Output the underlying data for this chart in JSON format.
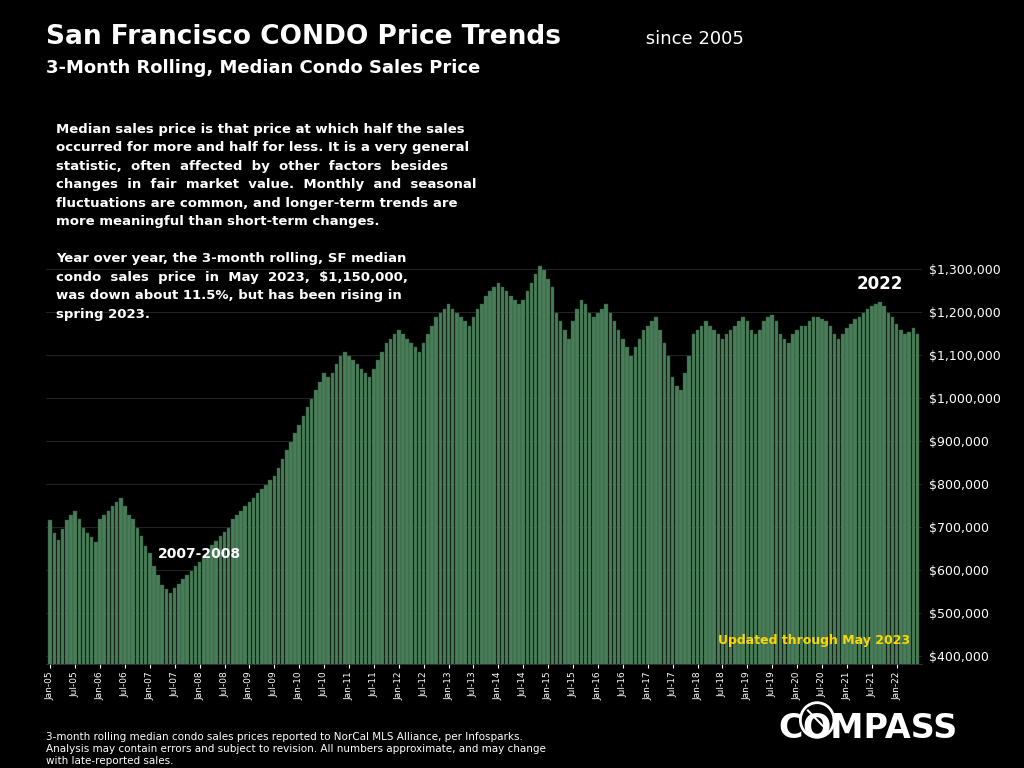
{
  "title_bold": "San Francisco CONDO Price Trends",
  "title_since": " since 2005",
  "subtitle": "3-Month Rolling, Median Condo Sales Price",
  "background_color": "#000000",
  "bar_color": "#4a7c59",
  "bar_edge_color": "#2a5c39",
  "text_color": "#ffffff",
  "yticks": [
    400000,
    500000,
    600000,
    700000,
    800000,
    900000,
    1000000,
    1100000,
    1200000,
    1300000
  ],
  "ymin": 380000,
  "ymax": 1390000,
  "annotation_2022": "2022",
  "annotation_2007": "2007-2008",
  "updated_text": "Updated through May 2023",
  "footnote1": "3-month rolling median condo sales prices reported to NorCal MLS Alliance, per Infosparks.",
  "footnote2": "Analysis may contain errors and subject to revision. All numbers approximate, and may change",
  "footnote3": "with late-reported sales.",
  "desc1": "Median sales price is that price at which half the sales",
  "desc2": "occurred for more and half for less. It is a very general",
  "desc3": "statistic,  often  affected  by  other  factors  besides",
  "desc4": "changes  in  fair  market  value.  Monthly  and  seasonal",
  "desc5": "fluctuations are common, and longer-term trends are",
  "desc6": "more meaningful than short-term changes.",
  "desc7": "",
  "desc8": "Year over year, the 3-month rolling, SF median",
  "desc9": "condo  sales  price  in  May  2023,  $1,150,000,",
  "desc10": "was down about 11.5%, but has been rising in",
  "desc11": "spring 2023.",
  "values": [
    715000,
    685000,
    670000,
    695000,
    715000,
    728000,
    738000,
    718000,
    698000,
    686000,
    676000,
    665000,
    718000,
    728000,
    738000,
    748000,
    758000,
    768000,
    748000,
    728000,
    718000,
    698000,
    678000,
    656000,
    638000,
    608000,
    588000,
    565000,
    555000,
    545000,
    558000,
    568000,
    578000,
    588000,
    598000,
    608000,
    618000,
    628000,
    638000,
    658000,
    668000,
    678000,
    688000,
    698000,
    718000,
    728000,
    738000,
    748000,
    758000,
    768000,
    778000,
    788000,
    798000,
    808000,
    818000,
    838000,
    858000,
    878000,
    898000,
    918000,
    938000,
    958000,
    978000,
    998000,
    1018000,
    1038000,
    1058000,
    1048000,
    1058000,
    1078000,
    1098000,
    1108000,
    1098000,
    1088000,
    1078000,
    1068000,
    1058000,
    1048000,
    1068000,
    1088000,
    1108000,
    1128000,
    1138000,
    1148000,
    1158000,
    1148000,
    1138000,
    1128000,
    1118000,
    1108000,
    1128000,
    1148000,
    1168000,
    1188000,
    1198000,
    1208000,
    1218000,
    1208000,
    1198000,
    1188000,
    1178000,
    1168000,
    1188000,
    1208000,
    1218000,
    1238000,
    1248000,
    1258000,
    1268000,
    1258000,
    1248000,
    1238000,
    1228000,
    1218000,
    1228000,
    1248000,
    1268000,
    1288000,
    1308000,
    1298000,
    1278000,
    1258000,
    1198000,
    1178000,
    1158000,
    1138000,
    1178000,
    1208000,
    1228000,
    1218000,
    1198000,
    1188000,
    1198000,
    1208000,
    1218000,
    1198000,
    1178000,
    1158000,
    1138000,
    1118000,
    1098000,
    1118000,
    1138000,
    1158000,
    1168000,
    1178000,
    1188000,
    1158000,
    1128000,
    1098000,
    1048000,
    1028000,
    1018000,
    1058000,
    1098000,
    1148000,
    1158000,
    1168000,
    1178000,
    1168000,
    1158000,
    1148000,
    1138000,
    1148000,
    1158000,
    1168000,
    1178000,
    1188000,
    1178000,
    1158000,
    1148000,
    1158000,
    1178000,
    1188000,
    1193000,
    1178000,
    1148000,
    1138000,
    1128000,
    1148000,
    1158000,
    1168000,
    1168000,
    1178000,
    1188000,
    1188000,
    1183000,
    1178000,
    1168000,
    1148000,
    1138000,
    1148000,
    1163000,
    1173000,
    1183000,
    1188000,
    1198000,
    1208000,
    1213000,
    1218000,
    1223000,
    1213000,
    1198000,
    1188000,
    1173000,
    1158000,
    1148000,
    1153000,
    1163000,
    1150000
  ]
}
